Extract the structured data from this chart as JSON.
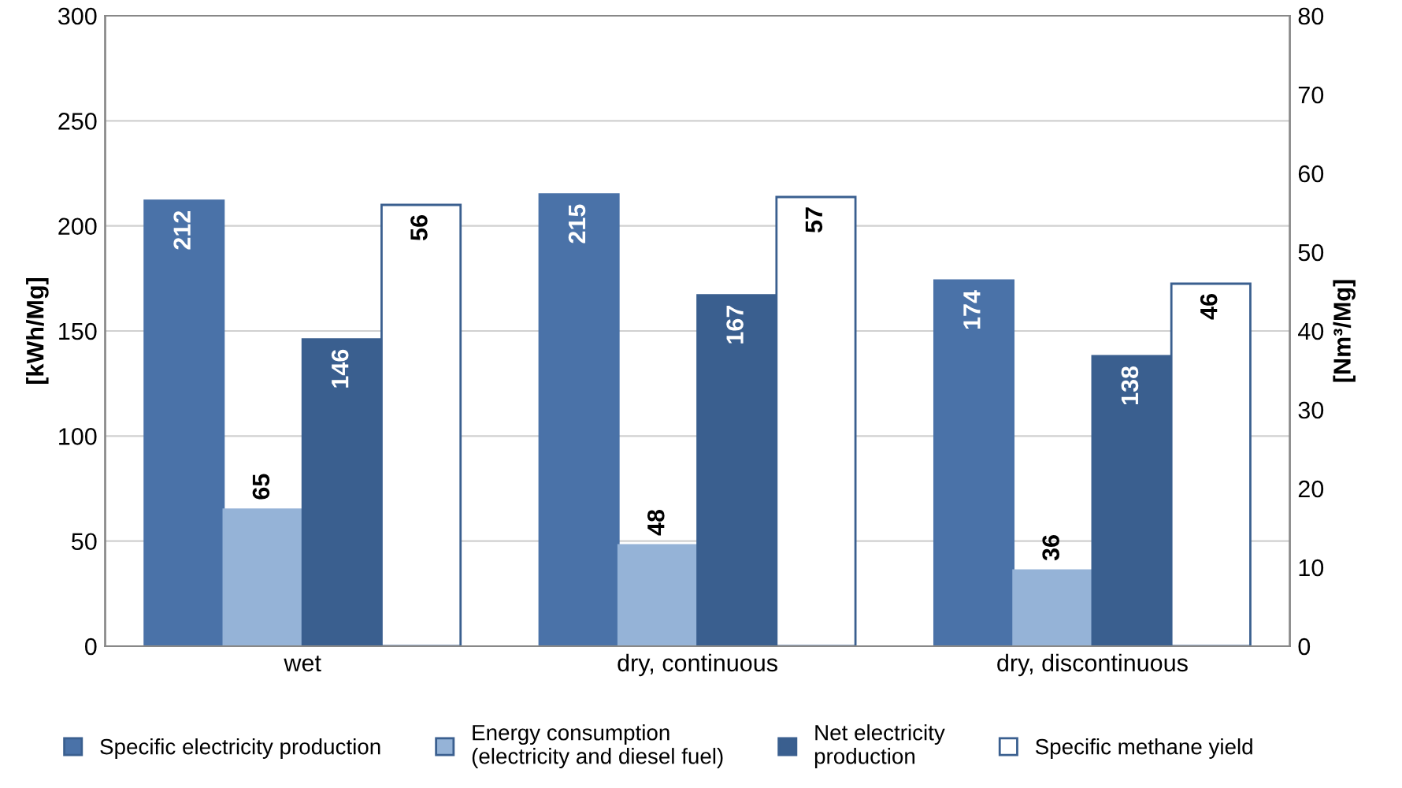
{
  "chart_data": {
    "type": "bar",
    "ylabel": "[kWh/Mg]",
    "y2label": "[Nm³/Mg]",
    "categories": [
      "wet",
      "dry, continuous",
      "dry, discontinuous"
    ],
    "series": [
      {
        "name": "Specific electricity production",
        "color": "#4a72a8",
        "values": [
          212,
          215,
          174
        ]
      },
      {
        "name": "Energy consumption\n(electricity and diesel fuel)",
        "color": "#95b3d7",
        "values": [
          65,
          48,
          36
        ]
      },
      {
        "name": "Net electricity\nproduction",
        "color": "#3a5f8f",
        "values": [
          146,
          167,
          138
        ]
      },
      {
        "name": "Specific methane yield",
        "color": "#ffffff",
        "values": [
          56,
          57,
          46
        ],
        "axis": "y2"
      }
    ],
    "ylim": [
      0,
      300
    ],
    "yticks": [
      0,
      50,
      100,
      150,
      200,
      250,
      300
    ],
    "y2lim": [
      0,
      80
    ],
    "y2ticks": [
      0,
      10,
      20,
      30,
      40,
      50,
      60,
      70,
      80
    ],
    "grid": "y",
    "legend": "bottom",
    "data_labels": true
  }
}
